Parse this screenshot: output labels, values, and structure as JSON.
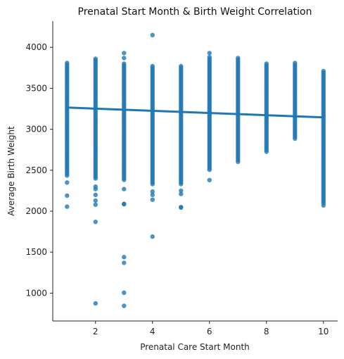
{
  "chart_data": {
    "type": "scatter",
    "title": "Prenatal Start Month & Birth Weight Correlation",
    "xlabel": "Prenatal Care Start Month",
    "ylabel": "Average Birth Weight",
    "xlim": [
      0.5,
      10.5
    ],
    "ylim": [
      660,
      4320
    ],
    "x_ticks": [
      2,
      4,
      6,
      8,
      10
    ],
    "y_ticks": [
      1000,
      1500,
      2000,
      2500,
      3000,
      3500,
      4000
    ],
    "grid": false,
    "legend": "none",
    "point_color": "#1f77b4",
    "regression": {
      "x": [
        1,
        10
      ],
      "y": [
        3265,
        3145
      ],
      "color": "#1f77b4"
    },
    "dense_ranges": [
      {
        "x": 1,
        "y_min": 2420,
        "y_max": 3810
      },
      {
        "x": 2,
        "y_min": 2380,
        "y_max": 3860
      },
      {
        "x": 3,
        "y_min": 2380,
        "y_max": 3800
      },
      {
        "x": 4,
        "y_min": 2320,
        "y_max": 3770
      },
      {
        "x": 5,
        "y_min": 2330,
        "y_max": 3770
      },
      {
        "x": 6,
        "y_min": 2500,
        "y_max": 3880
      },
      {
        "x": 7,
        "y_min": 2600,
        "y_max": 3870
      },
      {
        "x": 8,
        "y_min": 2720,
        "y_max": 3800
      },
      {
        "x": 9,
        "y_min": 2870,
        "y_max": 3810
      },
      {
        "x": 10,
        "y_min": 2080,
        "y_max": 3710
      }
    ],
    "outliers": [
      {
        "x": 1,
        "y": 2190
      },
      {
        "x": 1,
        "y": 2055
      },
      {
        "x": 1,
        "y": 2350
      },
      {
        "x": 2,
        "y": 2300
      },
      {
        "x": 2,
        "y": 2270
      },
      {
        "x": 2,
        "y": 2200
      },
      {
        "x": 2,
        "y": 2130
      },
      {
        "x": 2,
        "y": 2080
      },
      {
        "x": 2,
        "y": 1870
      },
      {
        "x": 2,
        "y": 875
      },
      {
        "x": 3,
        "y": 3930
      },
      {
        "x": 3,
        "y": 3870
      },
      {
        "x": 3,
        "y": 2270
      },
      {
        "x": 3,
        "y": 2090
      },
      {
        "x": 3,
        "y": 2085
      },
      {
        "x": 3,
        "y": 1440
      },
      {
        "x": 3,
        "y": 1370
      },
      {
        "x": 3,
        "y": 1005
      },
      {
        "x": 3,
        "y": 845
      },
      {
        "x": 4,
        "y": 4150
      },
      {
        "x": 4,
        "y": 2240
      },
      {
        "x": 4,
        "y": 2200
      },
      {
        "x": 4,
        "y": 2140
      },
      {
        "x": 4,
        "y": 1690
      },
      {
        "x": 5,
        "y": 2250
      },
      {
        "x": 5,
        "y": 2210
      },
      {
        "x": 5,
        "y": 2050
      },
      {
        "x": 5,
        "y": 2045
      },
      {
        "x": 6,
        "y": 3930
      },
      {
        "x": 6,
        "y": 2380
      },
      {
        "x": 10,
        "y": 2070
      }
    ]
  }
}
